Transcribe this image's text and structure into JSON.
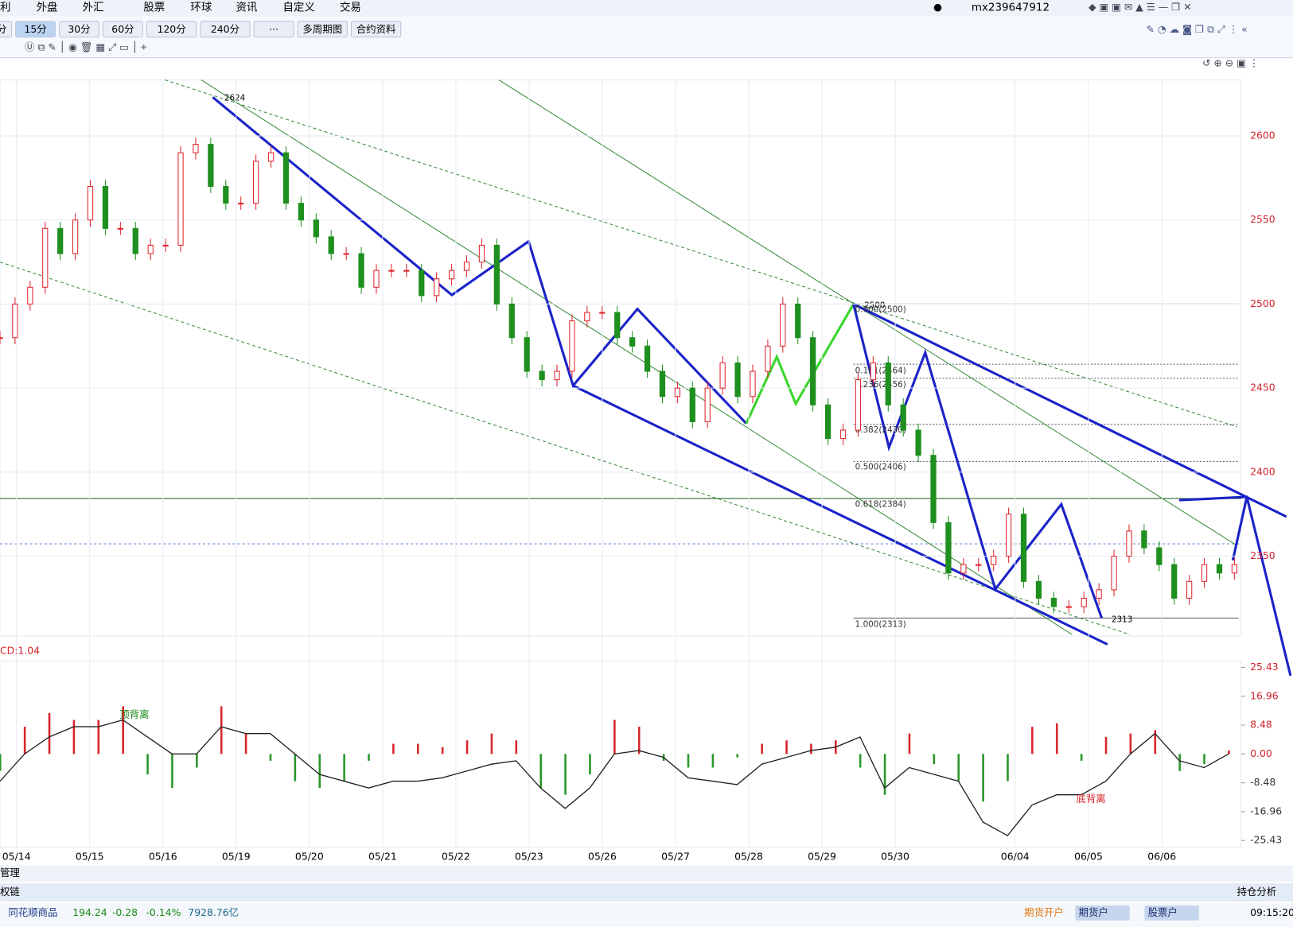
{
  "menu": [
    "利",
    "外盘",
    "外汇",
    "股票",
    "环球",
    "资讯",
    "自定义",
    "交易"
  ],
  "account": "mx239647912",
  "periods": [
    "分",
    "15分",
    "30分",
    "60分",
    "120分",
    "240分",
    "···",
    "多周期图",
    "合约资料"
  ],
  "price_axis": {
    "ticks": [
      2600,
      2550,
      2500,
      2450,
      2400,
      2350
    ]
  },
  "price_markers": {
    "high": "2624",
    "low": "2313",
    "top": "2500"
  },
  "fib": [
    "0.000(2500)",
    "0.191(2464)",
    "0.236(2456)",
    "0.382(2430)",
    "0.500(2406)",
    "0.618(2384)",
    "1.000(2313)"
  ],
  "dates": [
    "05/14",
    "05/15",
    "05/16",
    "05/19",
    "05/20",
    "05/21",
    "05/22",
    "05/23",
    "05/26",
    "05/27",
    "05/28",
    "05/29",
    "05/30",
    "06/04",
    "06/05",
    "06/06"
  ],
  "candles": {
    "closes": [
      2480,
      2500,
      2510,
      2545,
      2530,
      2550,
      2570,
      2545,
      2545,
      2530,
      2535,
      2535,
      2590,
      2595,
      2570,
      2560,
      2560,
      2585,
      2590,
      2560,
      2550,
      2540,
      2530,
      2530,
      2510,
      2520,
      2520,
      2520,
      2505,
      2515,
      2520,
      2525,
      2535,
      2500,
      2480,
      2460,
      2455,
      2460,
      2490,
      2495,
      2495,
      2480,
      2475,
      2460,
      2445,
      2450,
      2430,
      2450,
      2465,
      2445,
      2460,
      2475,
      2500,
      2480,
      2440,
      2420,
      2425,
      2455,
      2465,
      2440,
      2425,
      2410,
      2370,
      2340,
      2345,
      2345,
      2350,
      2375,
      2335,
      2325,
      2320,
      2320,
      2325,
      2330,
      2350,
      2365,
      2355,
      2345,
      2325,
      2335,
      2345,
      2340,
      2345
    ]
  },
  "macd": {
    "label": "CD:1.04",
    "ticks": [
      25.43,
      16.96,
      8.48,
      {
        "value": 0,
        "label": "0.00"
      },
      -8.48,
      -16.96,
      -25.43
    ],
    "hist": [
      -5,
      8,
      12,
      10,
      10,
      14,
      -6,
      -10,
      -4,
      14,
      6,
      -2,
      -8,
      -10,
      -8,
      -2,
      3,
      3,
      2,
      4,
      6,
      4,
      -10,
      -12,
      -6,
      10,
      8,
      -2,
      -4,
      -4,
      -1,
      3,
      4,
      3,
      4,
      -4,
      -12,
      6,
      -3,
      -8,
      -14,
      -8,
      8,
      9,
      -2,
      5,
      6,
      7,
      -5,
      -3,
      1
    ],
    "dif": [
      -8,
      0,
      5,
      8,
      8,
      10,
      5,
      0,
      0,
      8,
      6,
      6,
      0,
      -6,
      -8,
      -10,
      -8,
      -8,
      -7,
      -5,
      -3,
      -2,
      -10,
      -16,
      -10,
      0,
      1,
      -1,
      -7,
      -8,
      -9,
      -3,
      -1,
      1,
      2,
      5,
      -10,
      -4,
      -6,
      -8,
      -20,
      -24,
      -15,
      -12,
      -12,
      -8,
      0,
      6,
      -2,
      -4,
      0
    ],
    "notes": [
      "顶背离",
      "底背离"
    ]
  },
  "bottom_tabs": [
    "管理",
    "权链"
  ],
  "analysis_button": "持仓分析",
  "status": {
    "name": "同花顺商品",
    "price": "194.24",
    "change": "-0.28",
    "pct": "-0.14%",
    "amount": "7928.76亿",
    "links": [
      "期货开户",
      "期货户",
      "股票户"
    ],
    "time": "09:15:20"
  }
}
